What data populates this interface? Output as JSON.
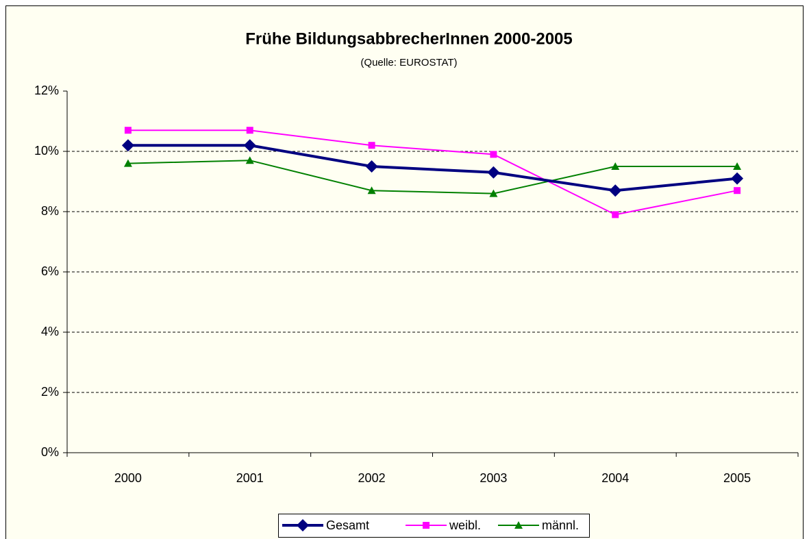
{
  "chart_data": {
    "type": "line",
    "title": "Frühe BildungsabbrecherInnen 2000-2005",
    "subtitle": "(Quelle: EUROSTAT)",
    "categories": [
      "2000",
      "2001",
      "2002",
      "2003",
      "2004",
      "2005"
    ],
    "series": [
      {
        "name": "Gesamt",
        "color": "#000080",
        "marker": "diamond",
        "values": [
          10.2,
          10.2,
          9.5,
          9.3,
          8.7,
          9.1
        ]
      },
      {
        "name": "weibl.",
        "color": "#ff00ff",
        "marker": "square",
        "values": [
          10.7,
          10.7,
          10.2,
          9.9,
          7.9,
          8.7
        ]
      },
      {
        "name": "männl.",
        "color": "#008000",
        "marker": "triangle",
        "values": [
          9.6,
          9.7,
          8.7,
          8.6,
          9.5,
          9.5
        ]
      }
    ],
    "ylim": [
      0,
      12
    ],
    "yticks": [
      {
        "value": 0,
        "label": "0%"
      },
      {
        "value": 2,
        "label": "2%"
      },
      {
        "value": 4,
        "label": "4%"
      },
      {
        "value": 6,
        "label": "6%"
      },
      {
        "value": 8,
        "label": "8%"
      },
      {
        "value": 10,
        "label": "10%"
      },
      {
        "value": 12,
        "label": "12%"
      }
    ],
    "grid": true,
    "legend": "bottom"
  }
}
